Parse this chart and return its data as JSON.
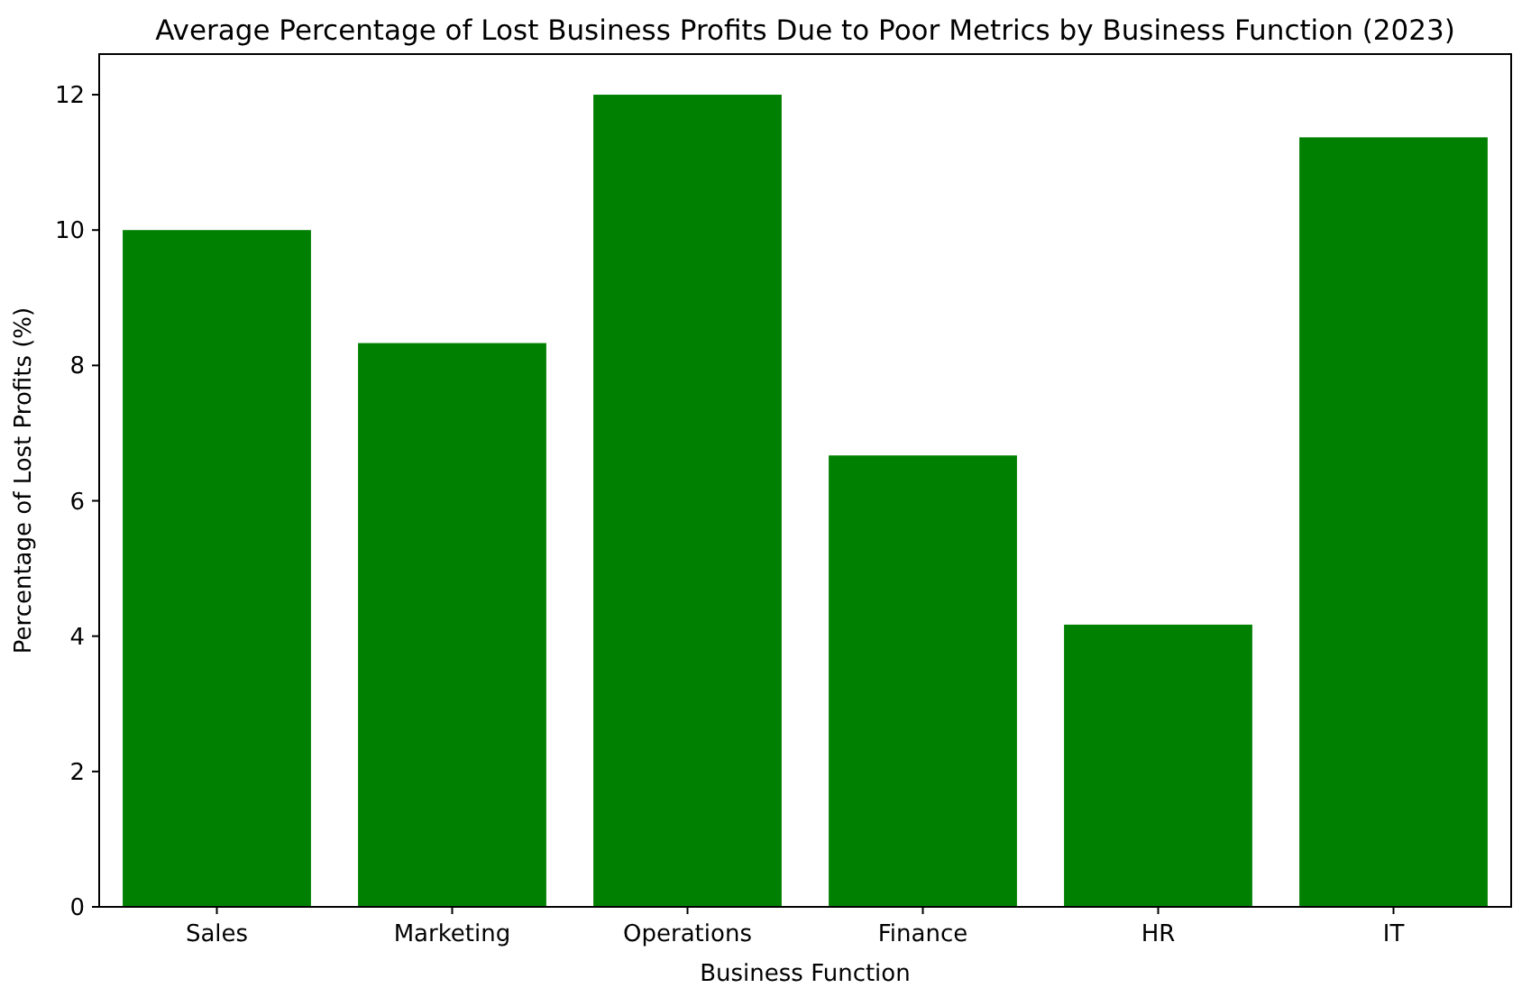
{
  "chart_data": {
    "type": "bar",
    "title": "Average Percentage of Lost Business Profits Due to Poor Metrics by Business Function (2023)",
    "xlabel": "Business Function",
    "ylabel": "Percentage of Lost Profits (%)",
    "categories": [
      "Sales",
      "Marketing",
      "Operations",
      "Finance",
      "HR",
      "IT"
    ],
    "values": [
      10,
      8.33,
      12,
      6.67,
      4.17,
      11.37
    ],
    "color": "#008000",
    "ylim": [
      0,
      12.6
    ],
    "yticks": [
      0,
      2,
      4,
      6,
      8,
      10,
      12
    ],
    "grid": false
  }
}
